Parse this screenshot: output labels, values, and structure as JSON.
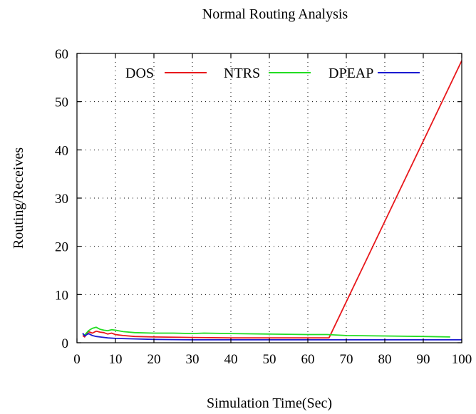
{
  "chart_data": {
    "type": "line",
    "title": "Normal Routing Analysis",
    "xlabel": "Simulation Time(Sec)",
    "ylabel": "Routing/Receives",
    "xlim": [
      0,
      100
    ],
    "ylim": [
      0,
      60
    ],
    "x_ticks": [
      "0",
      "10",
      "20",
      "30",
      "40",
      "50",
      "60",
      "70",
      "80",
      "90",
      "100"
    ],
    "y_ticks": [
      "0",
      "10",
      "20",
      "30",
      "40",
      "50",
      "60"
    ],
    "grid": true,
    "legend_position": "top",
    "series": [
      {
        "name": "DOS",
        "color": "#e8181c",
        "points": [
          [
            1.5,
            1.5
          ],
          [
            2,
            1.2
          ],
          [
            3,
            2.3
          ],
          [
            4,
            2.0
          ],
          [
            5,
            2.4
          ],
          [
            6,
            2.2
          ],
          [
            7,
            2.1
          ],
          [
            8,
            1.8
          ],
          [
            9,
            2.0
          ],
          [
            10,
            1.7
          ],
          [
            12,
            1.5
          ],
          [
            15,
            1.3
          ],
          [
            20,
            1.2
          ],
          [
            30,
            1.1
          ],
          [
            40,
            1.0
          ],
          [
            50,
            1.0
          ],
          [
            60,
            1.0
          ],
          [
            65.5,
            1.0
          ],
          [
            100,
            58.5
          ]
        ]
      },
      {
        "name": "NTRS",
        "color": "#22dd22",
        "points": [
          [
            1.5,
            1.8
          ],
          [
            2,
            1.6
          ],
          [
            3,
            2.5
          ],
          [
            4,
            3.0
          ],
          [
            5,
            3.2
          ],
          [
            6,
            2.8
          ],
          [
            7,
            2.6
          ],
          [
            8,
            2.5
          ],
          [
            9,
            2.7
          ],
          [
            10,
            2.6
          ],
          [
            12,
            2.3
          ],
          [
            15,
            2.1
          ],
          [
            20,
            2.0
          ],
          [
            25,
            2.0
          ],
          [
            30,
            1.9
          ],
          [
            33,
            2.0
          ],
          [
            40,
            1.9
          ],
          [
            50,
            1.8
          ],
          [
            60,
            1.7
          ],
          [
            65,
            1.7
          ],
          [
            70,
            1.5
          ],
          [
            80,
            1.4
          ],
          [
            90,
            1.3
          ],
          [
            97,
            1.2
          ]
        ]
      },
      {
        "name": "DPEAP",
        "color": "#1a1ad0",
        "points": [
          [
            1.5,
            2.0
          ],
          [
            2,
            1.4
          ],
          [
            3,
            1.9
          ],
          [
            4,
            1.5
          ],
          [
            5,
            1.3
          ],
          [
            6,
            1.2
          ],
          [
            8,
            1.0
          ],
          [
            10,
            0.9
          ],
          [
            15,
            0.8
          ],
          [
            20,
            0.7
          ],
          [
            30,
            0.6
          ],
          [
            40,
            0.6
          ],
          [
            50,
            0.6
          ],
          [
            60,
            0.6
          ],
          [
            70,
            0.6
          ],
          [
            80,
            0.6
          ],
          [
            90,
            0.6
          ],
          [
            100,
            0.6
          ]
        ]
      }
    ]
  }
}
